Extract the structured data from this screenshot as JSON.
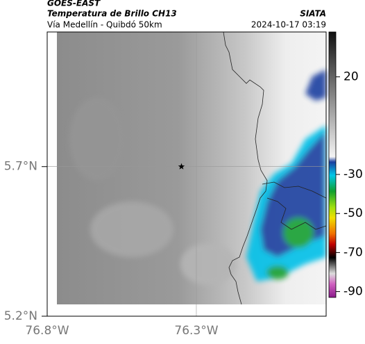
{
  "header": {
    "source": "GOES-EAST",
    "title": "Temperatura de Brillo CH13",
    "agency": "SIATA",
    "subtitle": "Vía Medellín - Quibdó 50km",
    "timestamp": "2024-10-17 03:19"
  },
  "map": {
    "xlim": [
      -76.8,
      -75.865
    ],
    "ylim": [
      5.2,
      6.15
    ],
    "xticks": [
      {
        "value": -76.8,
        "label": "76.8°W"
      },
      {
        "value": -76.3,
        "label": "76.3°W"
      }
    ],
    "yticks": [
      {
        "value": 5.2,
        "label": "5.2°N"
      },
      {
        "value": 5.7,
        "label": "5.7°N"
      }
    ],
    "grid": true,
    "marker": {
      "lon": -76.35,
      "lat": 5.7
    }
  },
  "colorbar": {
    "clim": [
      43,
      -93
    ],
    "ticks": [
      20,
      -30,
      -50,
      -70,
      -90
    ]
  }
}
